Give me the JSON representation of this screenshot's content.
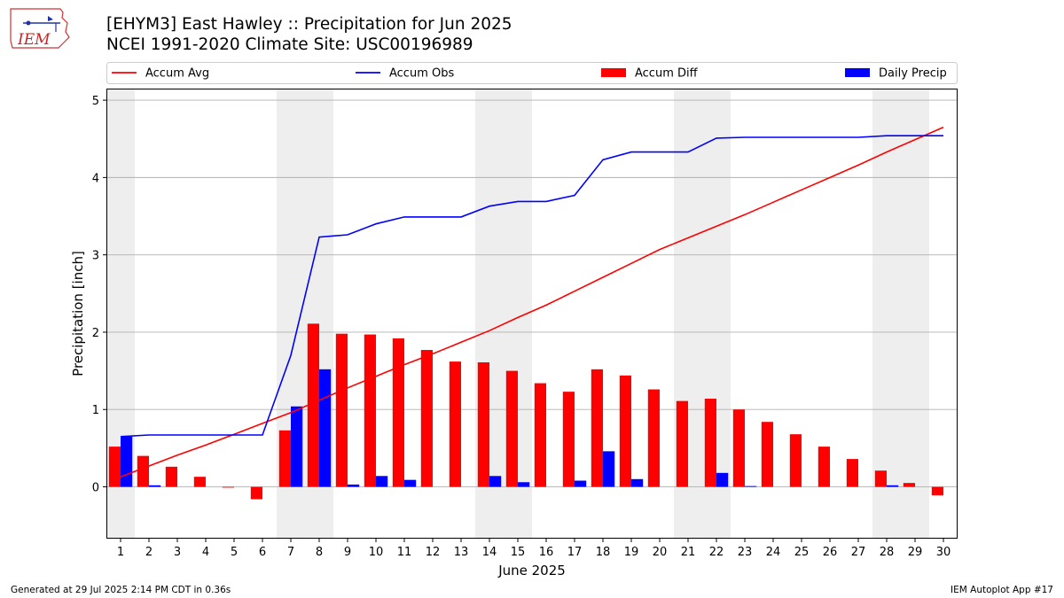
{
  "header": {
    "title_line1": "[EHYM3] East Hawley :: Precipitation for Jun 2025",
    "title_line2": "NCEI 1991-2020 Climate Site: USC00196989",
    "logo_text": "IEM"
  },
  "footer": {
    "left": "Generated at 29 Jul 2025 2:14 PM CDT in 0.36s",
    "right": "IEM Autoplot App #17"
  },
  "colors": {
    "avg": "#ff0000",
    "obs": "#0000ff",
    "diff": "#ff0000",
    "daily": "#0000ff",
    "weekend_shade": "#eeeeee",
    "grid": "#b0b0b0"
  },
  "chart_data": {
    "type": "bar",
    "xlabel": "June 2025",
    "ylabel": "Precipitation [inch]",
    "ylim": [
      -0.67,
      5.15
    ],
    "yticks": [
      0,
      1,
      2,
      3,
      4,
      5
    ],
    "grid": "horizontal",
    "legend_position": "top",
    "categories": [
      "1",
      "2",
      "3",
      "4",
      "5",
      "6",
      "7",
      "8",
      "9",
      "10",
      "11",
      "12",
      "13",
      "14",
      "15",
      "16",
      "17",
      "18",
      "19",
      "20",
      "21",
      "22",
      "23",
      "24",
      "25",
      "26",
      "27",
      "28",
      "29",
      "30"
    ],
    "shaded_days": [
      1,
      7,
      8,
      14,
      15,
      21,
      22,
      28,
      29
    ],
    "series": [
      {
        "name": "Accum Avg",
        "kind": "line",
        "values": [
          0.13,
          0.27,
          0.41,
          0.54,
          0.68,
          0.82,
          0.96,
          1.12,
          1.28,
          1.43,
          1.58,
          1.72,
          1.87,
          2.02,
          2.19,
          2.35,
          2.53,
          2.71,
          2.89,
          3.07,
          3.22,
          3.37,
          3.52,
          3.68,
          3.84,
          4.0,
          4.16,
          4.33,
          4.49,
          4.65
        ]
      },
      {
        "name": "Accum Obs",
        "kind": "line",
        "values": [
          0.65,
          0.67,
          0.67,
          0.67,
          0.67,
          0.67,
          1.7,
          3.23,
          3.26,
          3.4,
          3.49,
          3.49,
          3.49,
          3.63,
          3.69,
          3.69,
          3.77,
          4.23,
          4.33,
          4.33,
          4.33,
          4.51,
          4.52,
          4.52,
          4.52,
          4.52,
          4.52,
          4.54,
          4.54,
          4.54
        ]
      },
      {
        "name": "Accum Diff",
        "kind": "bar",
        "values": [
          0.52,
          0.4,
          0.26,
          0.13,
          -0.01,
          -0.16,
          0.73,
          2.11,
          1.98,
          1.97,
          1.92,
          1.77,
          1.62,
          1.61,
          1.5,
          1.34,
          1.23,
          1.52,
          1.44,
          1.26,
          1.11,
          1.14,
          1.0,
          0.84,
          0.68,
          0.52,
          0.36,
          0.21,
          0.05,
          -0.11
        ]
      },
      {
        "name": "Daily Precip",
        "kind": "bar",
        "values": [
          0.65,
          0.02,
          0.0,
          0.0,
          0.0,
          0.0,
          1.04,
          1.52,
          0.03,
          0.14,
          0.09,
          0.0,
          0.0,
          0.14,
          0.06,
          0.0,
          0.08,
          0.46,
          0.1,
          0.0,
          0.0,
          0.18,
          0.01,
          0.0,
          0.0,
          0.0,
          0.0,
          0.02,
          0.0,
          0.0
        ]
      }
    ]
  }
}
